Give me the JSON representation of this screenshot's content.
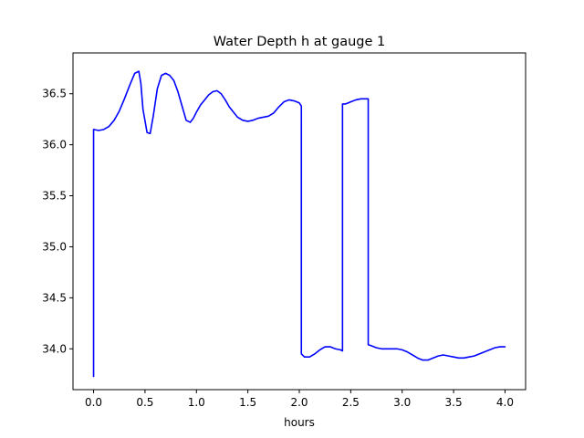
{
  "chart_data": {
    "type": "line",
    "title": "Water Depth h at gauge 1",
    "xlabel": "hours",
    "ylabel": "",
    "xlim": [
      -0.2,
      4.2
    ],
    "ylim": [
      33.6,
      36.9
    ],
    "xticks": [
      0.0,
      0.5,
      1.0,
      1.5,
      2.0,
      2.5,
      3.0,
      3.5,
      4.0
    ],
    "xtick_labels": [
      "0.0",
      "0.5",
      "1.0",
      "1.5",
      "2.0",
      "2.5",
      "3.0",
      "3.5",
      "4.0"
    ],
    "yticks": [
      34.0,
      34.5,
      35.0,
      35.5,
      36.0,
      36.5
    ],
    "ytick_labels": [
      "34.0",
      "34.5",
      "35.0",
      "35.5",
      "36.0",
      "36.5"
    ],
    "grid": false,
    "series": [
      {
        "color": "#0000ff",
        "x": [
          0.0,
          0.0,
          0.05,
          0.1,
          0.15,
          0.2,
          0.25,
          0.3,
          0.35,
          0.4,
          0.44,
          0.46,
          0.48,
          0.52,
          0.55,
          0.58,
          0.62,
          0.66,
          0.7,
          0.74,
          0.78,
          0.82,
          0.86,
          0.9,
          0.94,
          0.97,
          1.0,
          1.04,
          1.08,
          1.12,
          1.16,
          1.2,
          1.24,
          1.28,
          1.32,
          1.36,
          1.4,
          1.45,
          1.5,
          1.55,
          1.6,
          1.65,
          1.7,
          1.75,
          1.8,
          1.85,
          1.9,
          1.95,
          2.0,
          2.02,
          2.02,
          2.05,
          2.1,
          2.15,
          2.2,
          2.25,
          2.3,
          2.35,
          2.4,
          2.42,
          2.42,
          2.45,
          2.5,
          2.55,
          2.6,
          2.65,
          2.67,
          2.67,
          2.7,
          2.75,
          2.8,
          2.85,
          2.9,
          2.95,
          3.0,
          3.05,
          3.1,
          3.15,
          3.2,
          3.25,
          3.3,
          3.35,
          3.4,
          3.45,
          3.5,
          3.55,
          3.6,
          3.65,
          3.7,
          3.75,
          3.8,
          3.85,
          3.9,
          3.95,
          4.0
        ],
        "y": [
          33.73,
          36.15,
          36.14,
          36.15,
          36.18,
          36.24,
          36.33,
          36.45,
          36.58,
          36.7,
          36.72,
          36.6,
          36.35,
          36.12,
          36.11,
          36.28,
          36.55,
          36.68,
          36.7,
          36.68,
          36.63,
          36.52,
          36.38,
          36.24,
          36.22,
          36.26,
          36.32,
          36.39,
          36.44,
          36.49,
          36.52,
          36.53,
          36.5,
          36.44,
          36.37,
          36.32,
          36.27,
          36.24,
          36.23,
          36.24,
          36.26,
          36.27,
          36.28,
          36.31,
          36.37,
          36.42,
          36.44,
          36.43,
          36.41,
          36.38,
          33.95,
          33.92,
          33.92,
          33.95,
          33.99,
          34.02,
          34.02,
          34.0,
          33.99,
          33.98,
          36.4,
          36.4,
          36.42,
          36.44,
          36.45,
          36.45,
          36.45,
          34.04,
          34.03,
          34.01,
          34.0,
          34.0,
          34.0,
          34.0,
          33.99,
          33.97,
          33.94,
          33.91,
          33.89,
          33.89,
          33.91,
          33.93,
          33.94,
          33.93,
          33.92,
          33.91,
          33.91,
          33.92,
          33.93,
          33.95,
          33.97,
          33.99,
          34.01,
          34.02,
          34.02
        ]
      }
    ]
  }
}
